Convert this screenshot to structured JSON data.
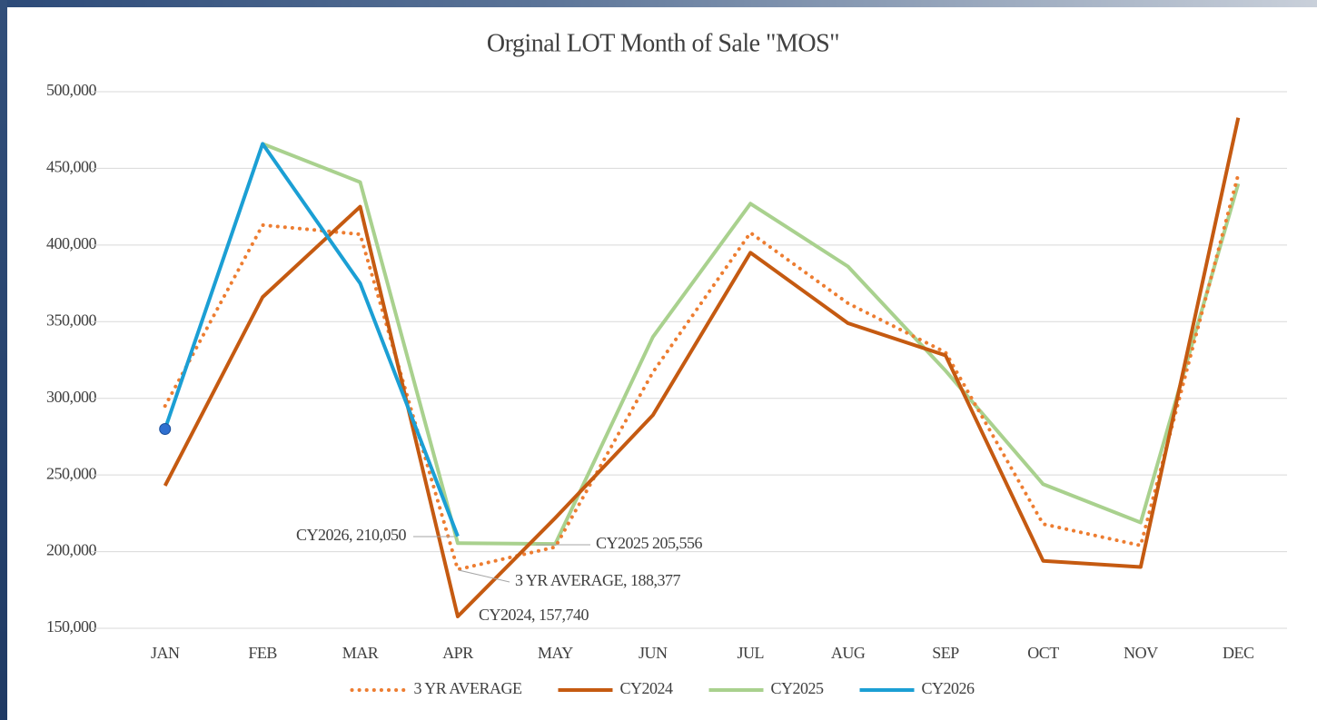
{
  "chart_data": {
    "type": "line",
    "title": "Orginal LOT Month of Sale \"MOS\"",
    "categories": [
      "JAN",
      "FEB",
      "MAR",
      "APR",
      "MAY",
      "JUN",
      "JUL",
      "AUG",
      "SEP",
      "OCT",
      "NOV",
      "DEC"
    ],
    "series": [
      {
        "name": "3 YR AVERAGE",
        "color": "#ed7d31",
        "dash": "dotted",
        "values": [
          295000,
          413000,
          407000,
          188377,
          203000,
          317000,
          408000,
          362000,
          330000,
          218000,
          204000,
          446000
        ],
        "value_labels": [
          null,
          null,
          null,
          "3 YR AVERAGE, 188,377",
          null,
          null,
          null,
          null,
          null,
          null,
          null,
          null
        ]
      },
      {
        "name": "CY2024",
        "color": "#c55a11",
        "values": [
          243000,
          366000,
          425000,
          157740,
          222000,
          289000,
          395000,
          349000,
          328000,
          194000,
          190000,
          483000
        ],
        "value_labels": [
          null,
          null,
          null,
          "CY2024, 157,740",
          null,
          null,
          null,
          null,
          null,
          null,
          null,
          null
        ]
      },
      {
        "name": "CY2025",
        "color": "#a9d18e",
        "values": [
          null,
          466000,
          441000,
          205556,
          205000,
          340000,
          427000,
          386000,
          318000,
          244000,
          219000,
          440000
        ],
        "value_labels": [
          null,
          null,
          null,
          "CY2025 205,556",
          null,
          null,
          null,
          null,
          null,
          null,
          null,
          null
        ]
      },
      {
        "name": "CY2026",
        "color": "#1b9fd4",
        "values": [
          280000,
          466000,
          375000,
          210050,
          null,
          null,
          null,
          null,
          null,
          null,
          null,
          null
        ],
        "value_labels": [
          null,
          null,
          null,
          "CY2026, 210,050",
          null,
          null,
          null,
          null,
          null,
          null,
          null,
          null
        ]
      }
    ],
    "ylim": [
      150000,
      500000
    ],
    "yticks": [
      {
        "value": 150000,
        "label": "150,000"
      },
      {
        "value": 200000,
        "label": "200,000"
      },
      {
        "value": 250000,
        "label": "250,000"
      },
      {
        "value": 300000,
        "label": "300,000"
      },
      {
        "value": 350000,
        "label": "350,000"
      },
      {
        "value": 400000,
        "label": "400,000"
      },
      {
        "value": 450000,
        "label": "450,000"
      },
      {
        "value": 500000,
        "label": "500,000"
      }
    ],
    "grid": true,
    "legend": "bottom"
  }
}
